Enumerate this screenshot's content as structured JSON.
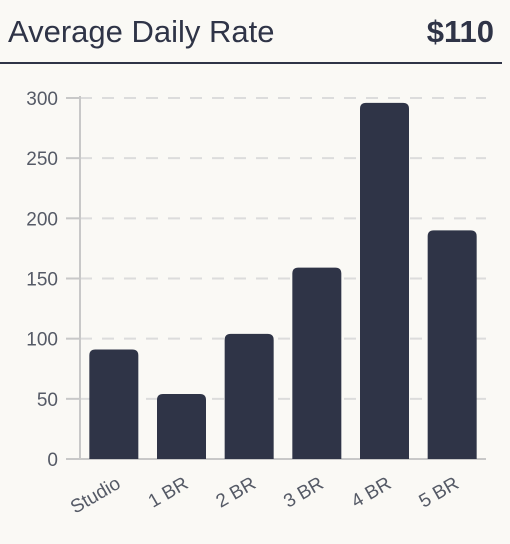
{
  "header": {
    "title": "Average Daily Rate",
    "value": "$110"
  },
  "colors": {
    "bar": "#2f3447",
    "grid": "#dcdcdc",
    "axis": "#c8c8c8",
    "text": "#555a66",
    "background": "#faf9f5"
  },
  "chart_data": {
    "type": "bar",
    "categories": [
      "Studio",
      "1 BR",
      "2 BR",
      "3 BR",
      "4 BR",
      "5 BR"
    ],
    "values": [
      91,
      54,
      104,
      159,
      296,
      190
    ],
    "ylim": [
      0,
      300
    ],
    "yticks": [
      0,
      50,
      100,
      150,
      200,
      250,
      300
    ],
    "grid": true,
    "grid_style": "dashed",
    "xlabel": "",
    "ylabel": ""
  }
}
